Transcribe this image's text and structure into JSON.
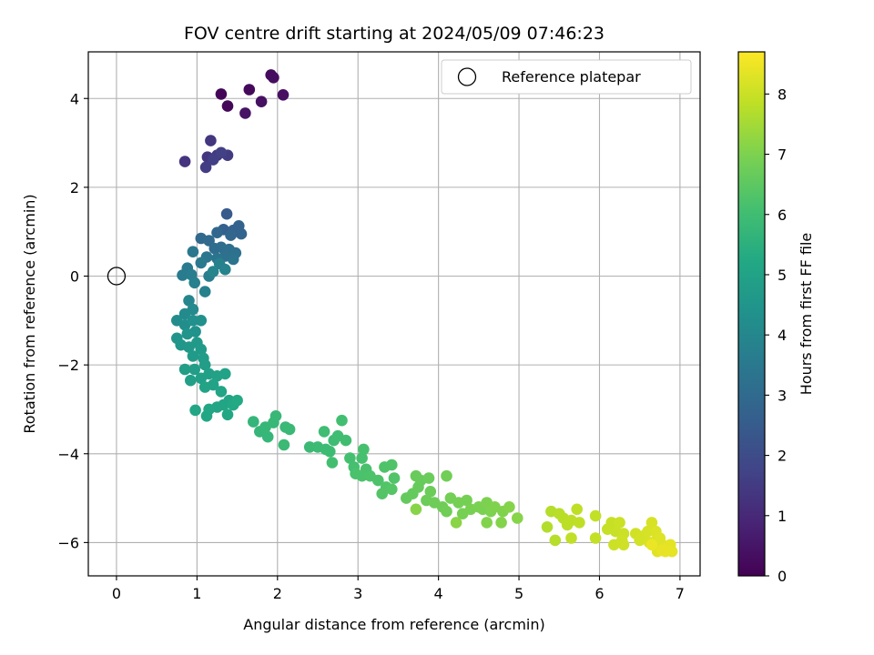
{
  "chart_data": {
    "type": "scatter",
    "title": "FOV centre drift starting at 2024/05/09 07:46:23",
    "xlabel": "Angular distance from reference (arcmin)",
    "ylabel": "Rotation from reference (arcmin)",
    "xlim": [
      -0.35,
      7.25
    ],
    "ylim": [
      -6.75,
      5.05
    ],
    "xticks": [
      0,
      1,
      2,
      3,
      4,
      5,
      6,
      7
    ],
    "yticks": [
      -6,
      -4,
      -2,
      0,
      2,
      4
    ],
    "xtick_labels": [
      "0",
      "1",
      "2",
      "3",
      "4",
      "5",
      "6",
      "7"
    ],
    "ytick_labels": [
      "−6",
      "−4",
      "−2",
      "0",
      "2",
      "4"
    ],
    "grid": true,
    "colormap": "viridis",
    "colorbar": {
      "label": "Hours from first FF file",
      "range": [
        0,
        8.7
      ],
      "ticks": [
        0,
        1,
        2,
        3,
        4,
        5,
        6,
        7,
        8
      ],
      "tick_labels": [
        "0",
        "1",
        "2",
        "3",
        "4",
        "5",
        "6",
        "7",
        "8"
      ]
    },
    "reference": {
      "label": "Reference platepar",
      "x": 0,
      "y": 0
    },
    "legend_position": "top-right",
    "points": [
      [
        1.3,
        4.1,
        0.1
      ],
      [
        1.38,
        3.83,
        0.15
      ],
      [
        1.65,
        4.2,
        0.2
      ],
      [
        1.92,
        4.53,
        0.25
      ],
      [
        1.95,
        4.47,
        0.3
      ],
      [
        2.07,
        4.08,
        0.35
      ],
      [
        1.8,
        3.93,
        0.4
      ],
      [
        1.6,
        3.67,
        0.45
      ],
      [
        0.85,
        2.58,
        1.3
      ],
      [
        1.17,
        3.05,
        1.35
      ],
      [
        1.13,
        2.68,
        1.4
      ],
      [
        1.25,
        2.72,
        1.45
      ],
      [
        1.38,
        2.72,
        1.5
      ],
      [
        1.11,
        2.45,
        1.55
      ],
      [
        1.2,
        2.62,
        1.6
      ],
      [
        1.3,
        2.78,
        1.65
      ],
      [
        1.37,
        1.4,
        2.5
      ],
      [
        1.33,
        1.05,
        2.6
      ],
      [
        1.45,
        1.03,
        2.7
      ],
      [
        1.52,
        1.13,
        2.75
      ],
      [
        1.55,
        0.95,
        2.8
      ],
      [
        1.42,
        0.92,
        2.85
      ],
      [
        1.25,
        0.98,
        2.9
      ],
      [
        1.05,
        0.85,
        2.95
      ],
      [
        1.15,
        0.8,
        3.0
      ],
      [
        1.22,
        0.62,
        3.05
      ],
      [
        1.3,
        0.65,
        3.1
      ],
      [
        1.4,
        0.6,
        3.15
      ],
      [
        1.35,
        0.45,
        3.2
      ],
      [
        1.48,
        0.52,
        3.25
      ],
      [
        1.45,
        0.38,
        3.3
      ],
      [
        1.25,
        0.4,
        3.35
      ],
      [
        1.12,
        0.43,
        3.4
      ],
      [
        0.95,
        0.55,
        3.45
      ],
      [
        1.05,
        0.3,
        3.5
      ],
      [
        0.88,
        0.18,
        3.55
      ],
      [
        0.82,
        0.02,
        3.6
      ],
      [
        0.93,
        0.03,
        3.65
      ],
      [
        1.15,
        0.0,
        3.7
      ],
      [
        0.97,
        -0.15,
        3.75
      ],
      [
        1.1,
        -0.35,
        3.8
      ],
      [
        1.28,
        0.28,
        3.8
      ],
      [
        1.35,
        0.15,
        3.85
      ],
      [
        1.2,
        0.1,
        3.9
      ],
      [
        0.9,
        -0.55,
        4.0
      ],
      [
        0.95,
        -0.75,
        4.1
      ],
      [
        0.85,
        -0.85,
        4.15
      ],
      [
        0.75,
        -1.0,
        4.2
      ],
      [
        0.85,
        -1.1,
        4.25
      ],
      [
        0.95,
        -1.0,
        4.3
      ],
      [
        1.05,
        -1.0,
        4.35
      ],
      [
        0.98,
        -1.25,
        4.4
      ],
      [
        0.88,
        -1.3,
        4.45
      ],
      [
        0.75,
        -1.4,
        4.5
      ],
      [
        0.8,
        -1.55,
        4.55
      ],
      [
        0.9,
        -1.6,
        4.6
      ],
      [
        1.0,
        -1.5,
        4.65
      ],
      [
        1.05,
        -1.65,
        4.7
      ],
      [
        0.95,
        -1.8,
        4.72
      ],
      [
        1.08,
        -1.85,
        4.75
      ],
      [
        1.1,
        -2.0,
        4.8
      ],
      [
        0.97,
        -2.1,
        4.82
      ],
      [
        0.85,
        -2.1,
        4.85
      ],
      [
        0.92,
        -2.35,
        4.88
      ],
      [
        1.05,
        -2.3,
        4.9
      ],
      [
        1.15,
        -2.2,
        4.92
      ],
      [
        1.25,
        -2.25,
        4.95
      ],
      [
        1.35,
        -2.2,
        4.98
      ],
      [
        1.2,
        -2.45,
        5.0
      ],
      [
        1.1,
        -2.5,
        5.02
      ],
      [
        1.3,
        -2.6,
        5.05
      ],
      [
        1.4,
        -2.8,
        5.08
      ],
      [
        1.33,
        -2.9,
        5.1
      ],
      [
        1.25,
        -2.95,
        5.12
      ],
      [
        1.15,
        -3.0,
        5.14
      ],
      [
        0.98,
        -3.02,
        5.16
      ],
      [
        1.12,
        -3.15,
        5.18
      ],
      [
        1.38,
        -3.12,
        5.2
      ],
      [
        1.45,
        -2.9,
        5.22
      ],
      [
        1.5,
        -2.8,
        5.24
      ],
      [
        1.7,
        -3.28,
        5.7
      ],
      [
        1.78,
        -3.5,
        5.72
      ],
      [
        1.88,
        -3.62,
        5.74
      ],
      [
        1.85,
        -3.4,
        5.76
      ],
      [
        1.95,
        -3.3,
        5.78
      ],
      [
        1.98,
        -3.15,
        5.8
      ],
      [
        2.1,
        -3.4,
        5.82
      ],
      [
        2.15,
        -3.45,
        5.84
      ],
      [
        2.08,
        -3.8,
        5.86
      ],
      [
        2.4,
        -3.85,
        5.88
      ],
      [
        2.5,
        -3.85,
        5.9
      ],
      [
        2.6,
        -3.9,
        5.92
      ],
      [
        2.65,
        -3.95,
        5.94
      ],
      [
        2.7,
        -3.7,
        5.96
      ],
      [
        2.58,
        -3.5,
        5.98
      ],
      [
        2.75,
        -3.6,
        6.0
      ],
      [
        2.85,
        -3.7,
        6.02
      ],
      [
        2.8,
        -3.25,
        6.04
      ],
      [
        2.68,
        -4.2,
        6.06
      ],
      [
        2.9,
        -4.1,
        6.08
      ],
      [
        2.95,
        -4.3,
        6.1
      ],
      [
        3.05,
        -4.1,
        6.12
      ],
      [
        3.07,
        -3.9,
        6.14
      ],
      [
        3.1,
        -4.35,
        6.16
      ],
      [
        2.97,
        -4.45,
        6.18
      ],
      [
        3.05,
        -4.5,
        6.2
      ],
      [
        3.15,
        -4.5,
        6.22
      ],
      [
        3.25,
        -4.6,
        6.24
      ],
      [
        3.33,
        -4.3,
        6.26
      ],
      [
        3.42,
        -4.25,
        6.28
      ],
      [
        3.45,
        -4.55,
        6.3
      ],
      [
        3.35,
        -4.75,
        6.32
      ],
      [
        3.3,
        -4.9,
        6.34
      ],
      [
        3.42,
        -4.8,
        6.36
      ],
      [
        3.6,
        -5.0,
        6.6
      ],
      [
        3.68,
        -4.9,
        6.62
      ],
      [
        3.75,
        -4.75,
        6.64
      ],
      [
        3.78,
        -4.6,
        6.66
      ],
      [
        3.72,
        -4.5,
        6.68
      ],
      [
        3.88,
        -4.55,
        6.7
      ],
      [
        3.9,
        -4.85,
        6.72
      ],
      [
        3.85,
        -5.05,
        6.74
      ],
      [
        3.95,
        -5.1,
        6.76
      ],
      [
        4.05,
        -5.2,
        6.78
      ],
      [
        4.1,
        -5.3,
        6.8
      ],
      [
        4.1,
        -4.5,
        6.82
      ],
      [
        4.15,
        -5.0,
        6.84
      ],
      [
        4.25,
        -5.1,
        6.86
      ],
      [
        4.35,
        -5.05,
        6.88
      ],
      [
        4.3,
        -5.35,
        6.9
      ],
      [
        4.4,
        -5.25,
        6.92
      ],
      [
        4.5,
        -5.2,
        6.94
      ],
      [
        4.55,
        -5.25,
        6.96
      ],
      [
        4.6,
        -5.1,
        6.98
      ],
      [
        4.65,
        -5.3,
        7.0
      ],
      [
        4.7,
        -5.2,
        7.02
      ],
      [
        4.8,
        -5.3,
        7.04
      ],
      [
        4.6,
        -5.55,
        7.06
      ],
      [
        4.78,
        -5.55,
        7.08
      ],
      [
        4.88,
        -5.2,
        7.1
      ],
      [
        4.98,
        -5.45,
        7.12
      ],
      [
        3.72,
        -5.25,
        7.14
      ],
      [
        4.22,
        -5.55,
        7.16
      ],
      [
        5.35,
        -5.65,
        7.7
      ],
      [
        5.4,
        -5.3,
        7.72
      ],
      [
        5.45,
        -5.95,
        7.74
      ],
      [
        5.5,
        -5.35,
        7.76
      ],
      [
        5.55,
        -5.45,
        7.78
      ],
      [
        5.6,
        -5.6,
        7.8
      ],
      [
        5.65,
        -5.5,
        7.82
      ],
      [
        5.72,
        -5.25,
        7.84
      ],
      [
        5.75,
        -5.55,
        7.86
      ],
      [
        5.65,
        -5.9,
        7.88
      ],
      [
        5.95,
        -5.4,
        7.9
      ],
      [
        5.95,
        -5.9,
        7.92
      ],
      [
        6.1,
        -5.7,
        7.94
      ],
      [
        6.15,
        -5.55,
        7.96
      ],
      [
        6.2,
        -5.75,
        7.98
      ],
      [
        6.25,
        -5.55,
        8.0
      ],
      [
        6.3,
        -5.8,
        8.02
      ],
      [
        6.18,
        -6.05,
        8.04
      ],
      [
        6.28,
        -5.95,
        8.06
      ],
      [
        6.3,
        -6.05,
        8.08
      ],
      [
        6.45,
        -5.8,
        8.1
      ],
      [
        6.5,
        -5.95,
        8.12
      ],
      [
        6.55,
        -5.85,
        8.14
      ],
      [
        6.6,
        -5.75,
        8.16
      ],
      [
        6.65,
        -5.55,
        8.18
      ],
      [
        6.62,
        -6.0,
        8.2
      ],
      [
        6.7,
        -5.75,
        8.22
      ],
      [
        6.7,
        -5.95,
        8.24
      ],
      [
        6.75,
        -5.9,
        8.26
      ],
      [
        6.78,
        -6.05,
        8.28
      ],
      [
        6.72,
        -6.2,
        8.3
      ],
      [
        6.8,
        -6.15,
        8.32
      ],
      [
        6.85,
        -6.1,
        8.34
      ],
      [
        6.88,
        -6.05,
        8.36
      ],
      [
        6.9,
        -6.2,
        8.38
      ],
      [
        6.82,
        -6.2,
        8.4
      ],
      [
        6.78,
        -6.18,
        8.42
      ],
      [
        6.65,
        -6.05,
        8.44
      ]
    ]
  }
}
